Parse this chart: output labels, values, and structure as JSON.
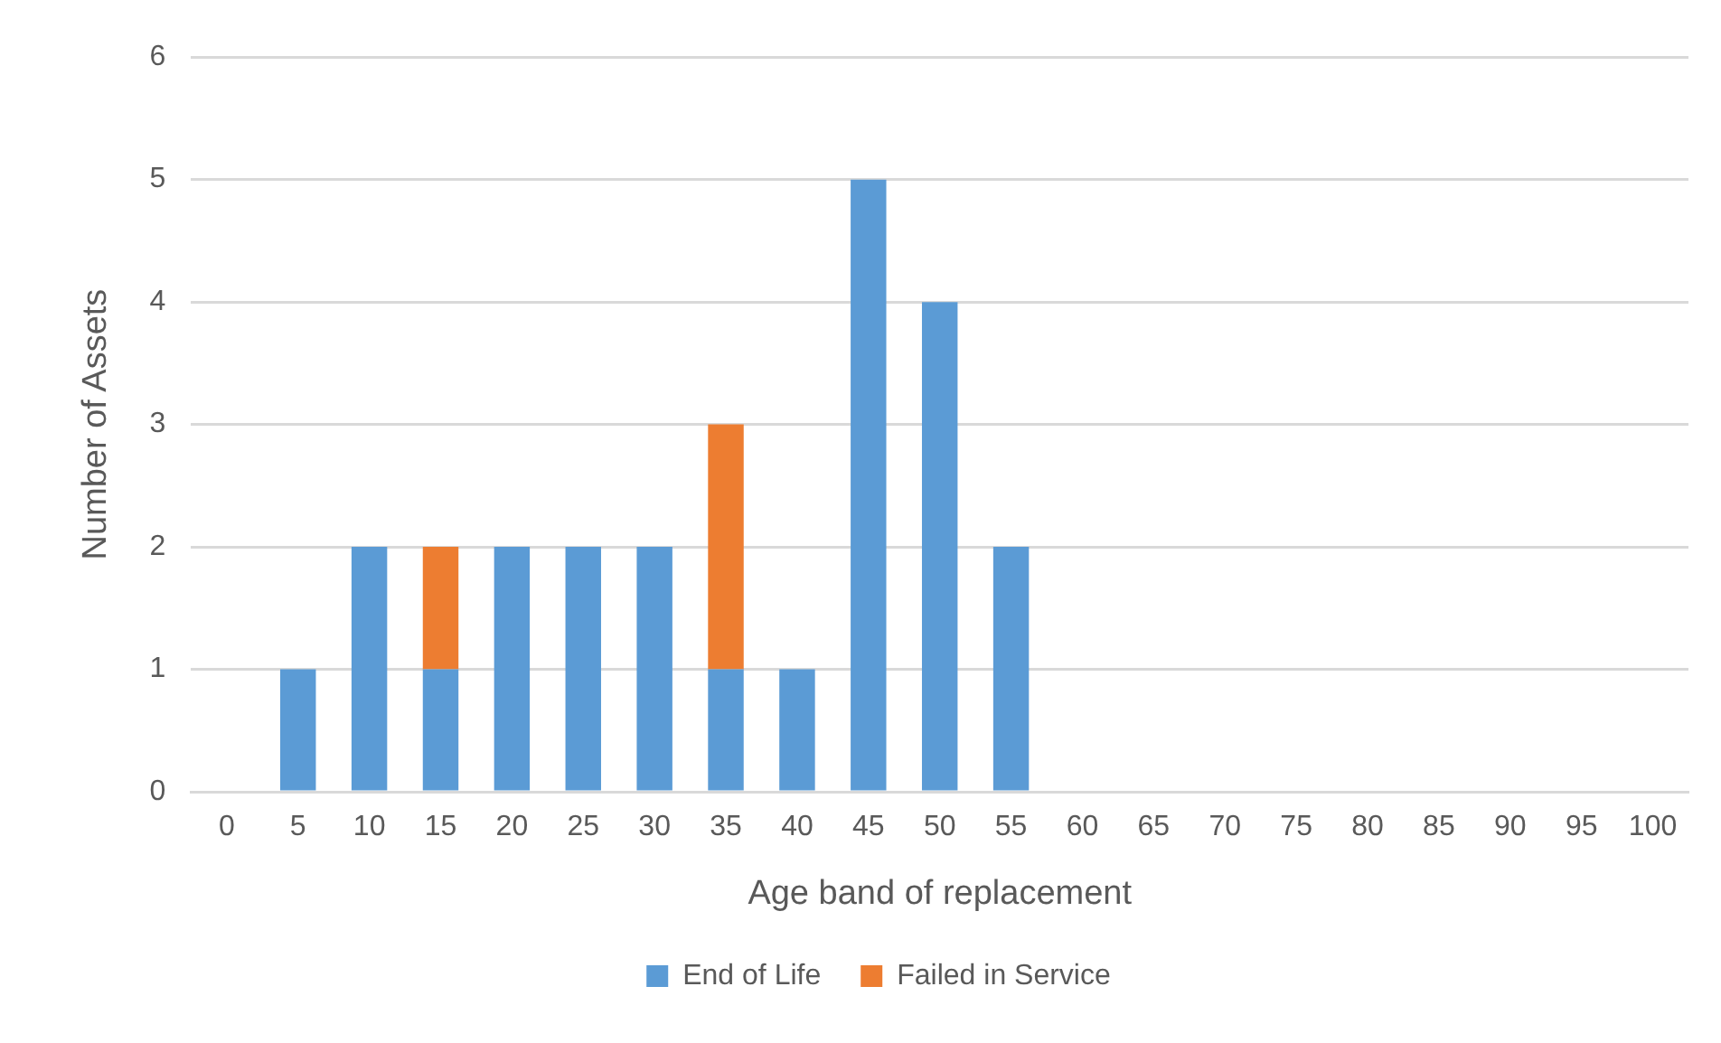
{
  "chart_data": {
    "type": "bar",
    "xlabel": "Age band of replacement",
    "ylabel": "Number of Assets",
    "categories": [
      "0",
      "5",
      "10",
      "15",
      "20",
      "25",
      "30",
      "35",
      "40",
      "45",
      "50",
      "55",
      "60",
      "65",
      "70",
      "75",
      "80",
      "85",
      "90",
      "95",
      "100"
    ],
    "series": [
      {
        "name": "End of Life",
        "color": "#5b9bd5",
        "values": [
          0,
          1,
          2,
          1,
          2,
          2,
          2,
          1,
          1,
          5,
          4,
          2,
          0,
          0,
          0,
          0,
          0,
          0,
          0,
          0,
          0
        ]
      },
      {
        "name": "Failed in Service",
        "color": "#ed7d31",
        "values": [
          0,
          0,
          0,
          1,
          0,
          0,
          0,
          2,
          0,
          0,
          0,
          0,
          0,
          0,
          0,
          0,
          0,
          0,
          0,
          0,
          0
        ]
      }
    ],
    "stacked": true,
    "ylim": [
      0,
      6
    ],
    "yticks": [
      0,
      1,
      2,
      3,
      4,
      5,
      6
    ],
    "grid": "y",
    "legend": "bottom"
  }
}
